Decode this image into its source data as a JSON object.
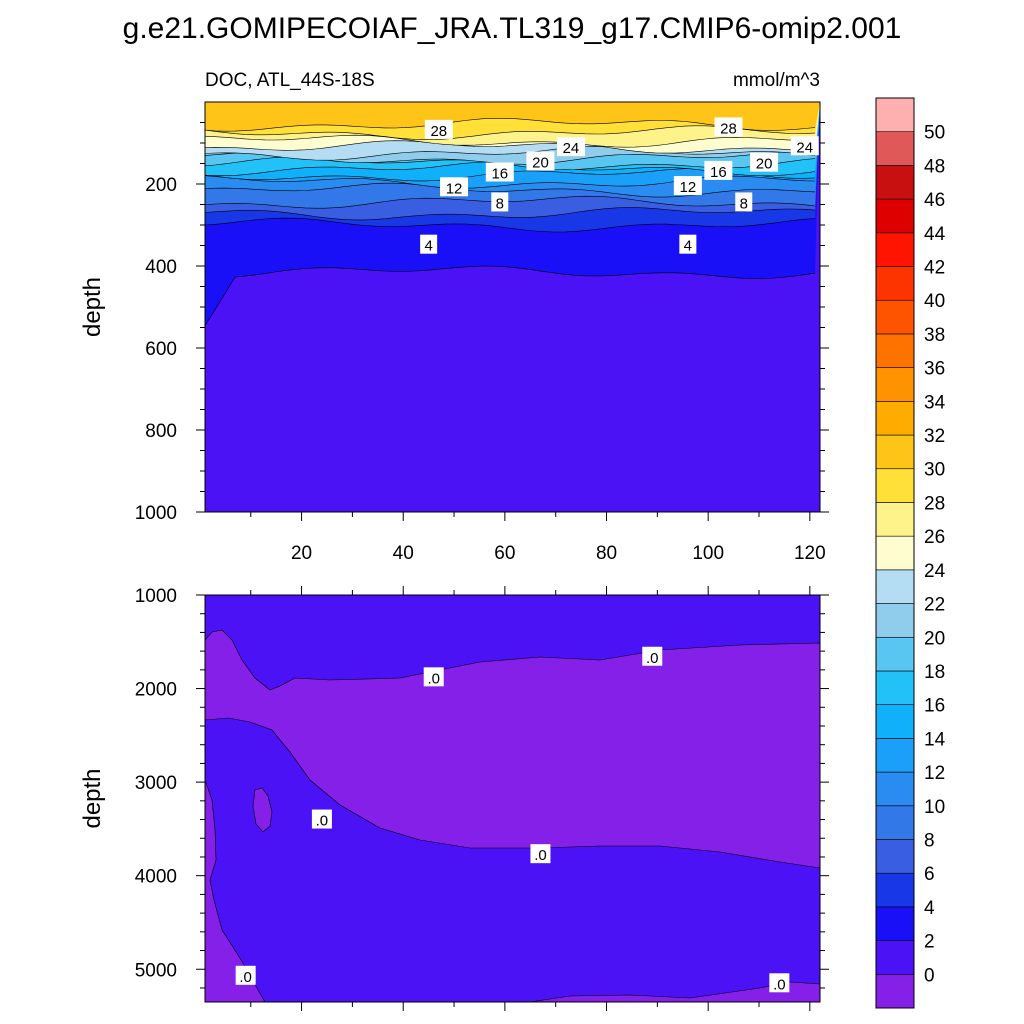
{
  "title": "g.e21.GOMIPECOIAF_JRA.TL319_g17.CMIP6-omip2.001",
  "subtitle_left": "DOC, ATL_44S-18S",
  "subtitle_right": "mmol/m^3",
  "chart_data": [
    {
      "type": "heatmap",
      "panel": "upper",
      "ylabel": "depth",
      "x_range": [
        1,
        122
      ],
      "y_range": [
        0,
        1000
      ],
      "x_ticks": [
        20,
        40,
        60,
        80,
        100,
        120
      ],
      "y_ticks": [
        200,
        400,
        600,
        800,
        1000
      ],
      "y_reversed": true,
      "contour_levels": [
        0,
        2,
        4,
        6,
        8,
        10,
        12,
        14,
        16,
        18,
        20,
        22,
        24,
        26,
        28,
        30
      ],
      "band_upper_depths": [
        415,
        300,
        272,
        245,
        215,
        195,
        178,
        163,
        150,
        137,
        125,
        110,
        95,
        75,
        55
      ],
      "contour_labels": [
        {
          "text": "28",
          "x": 47,
          "y": 68
        },
        {
          "text": "28",
          "x": 104,
          "y": 62
        },
        {
          "text": "24",
          "x": 73,
          "y": 110
        },
        {
          "text": "24",
          "x": 119,
          "y": 108
        },
        {
          "text": "20",
          "x": 67,
          "y": 145
        },
        {
          "text": "20",
          "x": 111,
          "y": 148
        },
        {
          "text": "16",
          "x": 59,
          "y": 172
        },
        {
          "text": "16",
          "x": 102,
          "y": 168
        },
        {
          "text": "12",
          "x": 50,
          "y": 208
        },
        {
          "text": "12",
          "x": 96,
          "y": 205
        },
        {
          "text": "8",
          "x": 59,
          "y": 245
        },
        {
          "text": "8",
          "x": 107,
          "y": 245
        },
        {
          "text": "4",
          "x": 45,
          "y": 348
        },
        {
          "text": "4",
          "x": 96,
          "y": 348
        }
      ]
    },
    {
      "type": "heatmap",
      "panel": "lower",
      "ylabel": "depth",
      "x_range": [
        1,
        122
      ],
      "y_range": [
        1000,
        5350
      ],
      "y_ticks": [
        1000,
        2000,
        3000,
        4000,
        5000
      ],
      "y_reversed": true,
      "contour_labels": [
        {
          "text": ".0",
          "x": 46,
          "y": 1880
        },
        {
          "text": ".0",
          "x": 89,
          "y": 1660
        },
        {
          "text": ".0",
          "x": 24,
          "y": 3400
        },
        {
          "text": ".0",
          "x": 67,
          "y": 3770
        },
        {
          "text": ".0",
          "x": 9,
          "y": 5070
        },
        {
          "text": ".0",
          "x": 114,
          "y": 5150
        }
      ]
    }
  ],
  "colorbar": {
    "labels": [
      "0",
      "2",
      "4",
      "6",
      "8",
      "10",
      "12",
      "14",
      "16",
      "18",
      "20",
      "22",
      "24",
      "26",
      "28",
      "30",
      "32",
      "34",
      "36",
      "38",
      "40",
      "42",
      "44",
      "46",
      "48",
      "50"
    ],
    "colors": [
      "#8420e8",
      "#4a12f5",
      "#1a10f8",
      "#1838e8",
      "#3a5ee2",
      "#3278e8",
      "#2a8cf0",
      "#1aa0f8",
      "#10b0fa",
      "#22c2f8",
      "#58c6f0",
      "#90cdec",
      "#b4dcf2",
      "#fdfdd0",
      "#fef28a",
      "#fee038",
      "#fec418",
      "#feac00",
      "#fe9200",
      "#fe7200",
      "#fe5400",
      "#fe3400",
      "#fe1400",
      "#de0000",
      "#c81010",
      "#e05858",
      "#feb0b0"
    ]
  }
}
